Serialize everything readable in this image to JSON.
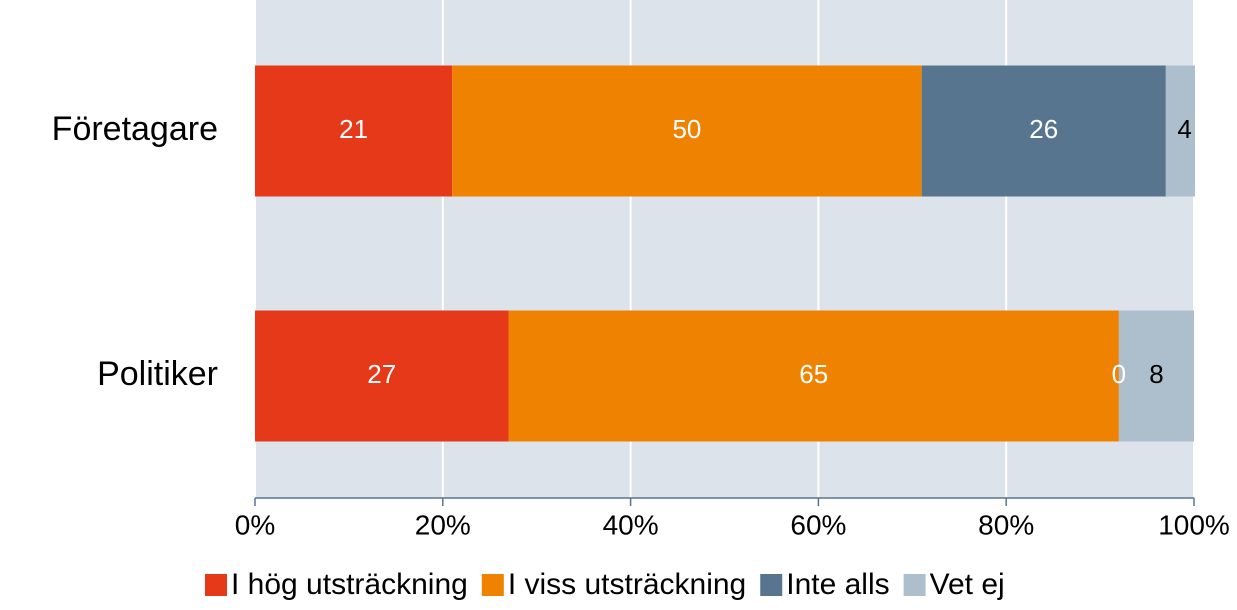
{
  "chart_data": {
    "type": "stacked_bar_horizontal",
    "categories": [
      "Företagare",
      "Politiker"
    ],
    "series": [
      {
        "name": "I hög utsträckning",
        "color": "#e5391a",
        "label_color": "#ffffff",
        "values": [
          21,
          27
        ]
      },
      {
        "name": "I viss utsträckning",
        "color": "#ef8200",
        "label_color": "#ffffff",
        "values": [
          50,
          65
        ]
      },
      {
        "name": "Inte alls",
        "color": "#587590",
        "label_color": "#ffffff",
        "values": [
          26,
          0
        ]
      },
      {
        "name": "Vet ej",
        "color": "#adbfcc",
        "label_color": "#000000",
        "values": [
          4,
          8
        ]
      }
    ],
    "xlim": [
      0,
      100
    ],
    "xticks": [
      {
        "value": 0,
        "label": "0%"
      },
      {
        "value": 20,
        "label": "20%"
      },
      {
        "value": 40,
        "label": "40%"
      },
      {
        "value": 60,
        "label": "60%"
      },
      {
        "value": 80,
        "label": "80%"
      },
      {
        "value": 100,
        "label": "100%"
      }
    ],
    "grid": true,
    "legend": "bottom"
  }
}
